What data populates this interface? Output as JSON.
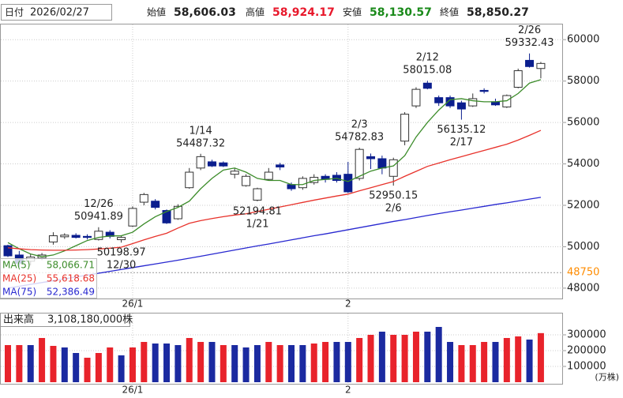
{
  "header": {
    "date_label": "日付",
    "date": "2026/02/27",
    "open_label": "始値",
    "open": "58,606.03",
    "high_label": "高値",
    "high": "58,924.17",
    "low_label": "安値",
    "low": "58,130.57",
    "close_label": "終値",
    "close": "58,850.27"
  },
  "chart_data": [
    {
      "type": "candlestick",
      "categories": [
        null,
        null,
        null,
        null,
        null,
        null,
        null,
        null,
        null,
        null,
        null,
        "26/1",
        null,
        null,
        null,
        null,
        null,
        null,
        null,
        null,
        null,
        null,
        null,
        null,
        null,
        null,
        null,
        null,
        null,
        null,
        "2",
        null,
        null,
        null,
        null,
        null,
        null,
        null,
        null,
        null,
        null,
        null,
        null,
        null,
        null,
        null,
        null,
        null
      ],
      "open": [
        50050,
        49600,
        49300,
        49450,
        50230,
        50480,
        50550,
        50500,
        50350,
        50700,
        50340,
        51000,
        52150,
        52200,
        51750,
        51350,
        52850,
        53800,
        54100,
        54050,
        53500,
        52950,
        52250,
        53250,
        53950,
        53000,
        52850,
        53100,
        53400,
        53450,
        53500,
        53300,
        54350,
        54250,
        53400,
        55100,
        56800,
        57900,
        57200,
        57200,
        56950,
        56800,
        57550,
        57000,
        56750,
        57700,
        59000,
        58606.03
      ],
      "high": [
        50100,
        49800,
        49650,
        49700,
        50700,
        50650,
        50650,
        50600,
        50941.89,
        50800,
        50550,
        51950,
        52600,
        52300,
        51800,
        52050,
        53800,
        54487.32,
        54200,
        54120,
        53800,
        53500,
        52850,
        53800,
        54050,
        53100,
        53400,
        53500,
        53500,
        53600,
        54100,
        54782.83,
        54500,
        54400,
        54300,
        56500,
        57700,
        58015.08,
        57300,
        57300,
        57050,
        57400,
        57650,
        57150,
        57350,
        58600,
        59332.43,
        58924.17
      ],
      "low": [
        49500,
        49000,
        49100,
        49350,
        50100,
        50380,
        50400,
        50350,
        50300,
        50400,
        50198.97,
        50950,
        52000,
        51800,
        51100,
        51300,
        52800,
        53700,
        53850,
        53850,
        53300,
        52900,
        52194.81,
        53200,
        53700,
        52700,
        52750,
        53000,
        53100,
        53100,
        52600,
        53200,
        53750,
        53500,
        52950.15,
        54900,
        56700,
        57600,
        56800,
        56700,
        56135.12,
        56750,
        57400,
        56800,
        56700,
        57650,
        58650,
        58130.57
      ],
      "close": [
        49560,
        49200,
        49500,
        49600,
        50530,
        50560,
        50450,
        50450,
        50750,
        50500,
        50450,
        51850,
        52520,
        51900,
        51150,
        51950,
        53600,
        54350,
        53900,
        53900,
        53650,
        53400,
        52800,
        53600,
        53850,
        52800,
        53300,
        53350,
        53250,
        53200,
        52650,
        54700,
        54250,
        53800,
        54200,
        56400,
        57600,
        57650,
        56950,
        56800,
        56650,
        57150,
        57500,
        56850,
        57300,
        58500,
        58700,
        58850.27
      ],
      "up_color": "#ffffff",
      "down_color": "#0b1e8e",
      "series": [
        {
          "name": "MA(5)",
          "color": "#3c8c2a",
          "legend_value": {
            "value": 58066.71,
            "label": "58,066.71"
          },
          "values": [
            50200,
            49900,
            49650,
            49520,
            49600,
            49800,
            50050,
            50300,
            50450,
            50520,
            50530,
            50700,
            51100,
            51450,
            51700,
            51900,
            52200,
            52800,
            53300,
            53700,
            53800,
            53600,
            53300,
            53200,
            53200,
            53000,
            53000,
            53200,
            53250,
            53300,
            53150,
            53400,
            53650,
            53800,
            53900,
            54400,
            55300,
            56000,
            56600,
            57100,
            57150,
            57050,
            57000,
            57000,
            57050,
            57400,
            57900,
            58066.71
          ]
        },
        {
          "name": "MA(25)",
          "color": "#e8322b",
          "legend_value": {
            "value": 55618.68,
            "label": "55,618.68"
          },
          "values": [
            49950,
            49900,
            49860,
            49840,
            49830,
            49830,
            49840,
            49860,
            49890,
            49930,
            49980,
            50150,
            50330,
            50500,
            50650,
            50900,
            51130,
            51260,
            51360,
            51450,
            51530,
            51590,
            51700,
            51810,
            51920,
            52030,
            52140,
            52250,
            52350,
            52450,
            52540,
            52700,
            52850,
            53000,
            53150,
            53400,
            53640,
            53880,
            54040,
            54200,
            54350,
            54500,
            54650,
            54800,
            54950,
            55150,
            55380,
            55618.68
          ]
        },
        {
          "name": "MA(75)",
          "color": "#2828d0",
          "legend_value": {
            "value": 52386.49,
            "label": "52,386.49"
          },
          "values": [
            48000,
            48090,
            48180,
            48270,
            48360,
            48450,
            48540,
            48630,
            48720,
            48810,
            48900,
            48990,
            49080,
            49170,
            49260,
            49350,
            49445,
            49540,
            49640,
            49740,
            49840,
            49940,
            50040,
            50130,
            50230,
            50330,
            50430,
            50530,
            50620,
            50720,
            50820,
            50920,
            51020,
            51120,
            51220,
            51310,
            51410,
            51510,
            51600,
            51690,
            51770,
            51860,
            51950,
            52040,
            52120,
            52210,
            52300,
            52386.49
          ]
        }
      ],
      "annotations": [
        {
          "date": "12/26",
          "value": 50941.89
        },
        {
          "date": "12/30",
          "value": 50198.97
        },
        {
          "date": "1/14",
          "value": 54487.32
        },
        {
          "date": "1/21",
          "value": 52194.81
        },
        {
          "date": "2/3",
          "value": 54782.83
        },
        {
          "date": "2/6",
          "value": 52950.15
        },
        {
          "date": "2/12",
          "value": 58015.08
        },
        {
          "date": "2/17",
          "value": 56135.12
        },
        {
          "date": "2/26",
          "value": 59332.43
        }
      ],
      "reference_line": {
        "value": 48750,
        "color": "#ff8c00"
      },
      "ylim": [
        47500,
        60770
      ],
      "yticks": [
        48000,
        50000,
        52000,
        54000,
        56000,
        58000,
        60000
      ],
      "grid": true
    },
    {
      "type": "bar",
      "title": "出来高",
      "subtitle": "3,108,180,000株",
      "unit_label": "(万株)",
      "categories": [
        null,
        null,
        null,
        null,
        null,
        null,
        null,
        null,
        null,
        null,
        null,
        "26/1",
        null,
        null,
        null,
        null,
        null,
        null,
        null,
        null,
        null,
        null,
        null,
        null,
        null,
        null,
        null,
        null,
        null,
        null,
        "2",
        null,
        null,
        null,
        null,
        null,
        null,
        null,
        null,
        null,
        null,
        null,
        null,
        null,
        null,
        null,
        null,
        null
      ],
      "values": [
        235000,
        235000,
        235000,
        280000,
        230000,
        220000,
        185000,
        155000,
        185000,
        220000,
        170000,
        220000,
        255000,
        245000,
        245000,
        235000,
        280000,
        255000,
        255000,
        235000,
        235000,
        220000,
        235000,
        255000,
        235000,
        235000,
        235000,
        245000,
        255000,
        255000,
        255000,
        280000,
        300000,
        320000,
        300000,
        300000,
        320000,
        320000,
        350000,
        255000,
        235000,
        235000,
        255000,
        255000,
        280000,
        290000,
        270000,
        310818
      ],
      "colors": [
        "#e8232b",
        "#e8232b",
        "#1b2aa0",
        "#e8232b",
        "#e8232b",
        "#1b2aa0",
        "#1b2aa0",
        "#e8232b",
        "#e8232b",
        "#e8232b",
        "#1b2aa0",
        "#e8232b",
        "#e8232b",
        "#1b2aa0",
        "#1b2aa0",
        "#1b2aa0",
        "#e8232b",
        "#e8232b",
        "#1b2aa0",
        "#e8232b",
        "#1b2aa0",
        "#1b2aa0",
        "#1b2aa0",
        "#e8232b",
        "#e8232b",
        "#1b2aa0",
        "#1b2aa0",
        "#e8232b",
        "#e8232b",
        "#1b2aa0",
        "#1b2aa0",
        "#e8232b",
        "#e8232b",
        "#1b2aa0",
        "#e8232b",
        "#e8232b",
        "#e8232b",
        "#1b2aa0",
        "#1b2aa0",
        "#1b2aa0",
        "#e8232b",
        "#e8232b",
        "#e8232b",
        "#1b2aa0",
        "#e8232b",
        "#e8232b",
        "#1b2aa0",
        "#e8232b"
      ],
      "ylim": [
        0,
        435000
      ],
      "yticks": [
        100000,
        200000,
        300000
      ],
      "grid": true
    }
  ]
}
